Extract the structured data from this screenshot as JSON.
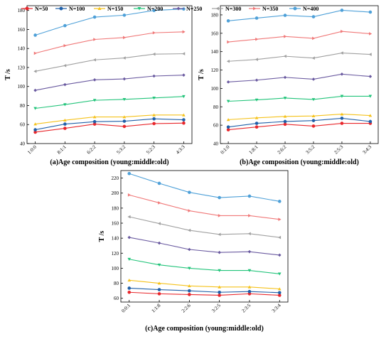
{
  "legend": {
    "position": "top",
    "items": [
      {
        "label": "N=50",
        "color": "#e8262b",
        "marker": "circle"
      },
      {
        "label": "N=100",
        "color": "#1f5fa8",
        "marker": "circle"
      },
      {
        "label": "N=150",
        "color": "#f5c21b",
        "marker": "triangle-up"
      },
      {
        "label": "N=200",
        "color": "#22c47a",
        "marker": "triangle-down"
      },
      {
        "label": "N=250",
        "color": "#6a5aa0",
        "marker": "diamond"
      },
      {
        "label": "N=300",
        "color": "#a0a0a0",
        "marker": "triangle-left"
      },
      {
        "label": "N=350",
        "color": "#f07878",
        "marker": "triangle-right"
      },
      {
        "label": "N=400",
        "color": "#4ea0d8",
        "marker": "circle"
      }
    ]
  },
  "chart_data": [
    {
      "type": "line",
      "panel": "a",
      "caption": "(a)Age composition (young:middle:old)",
      "ylabel": "T /s",
      "xlabel": "",
      "categories": [
        "1:0:0",
        "8:1:1",
        "6:2:2",
        "5:3:2",
        "5:2:3",
        "4:3:3"
      ],
      "ylim": [
        40,
        185
      ],
      "yticks": [
        40,
        60,
        80,
        100,
        120,
        140,
        160,
        180
      ],
      "series": [
        {
          "name": "N=50",
          "values": [
            52,
            56,
            60.5,
            58,
            61,
            61.5
          ]
        },
        {
          "name": "N=100",
          "values": [
            54.5,
            60.5,
            63,
            63.5,
            66,
            65
          ]
        },
        {
          "name": "N=150",
          "values": [
            60.5,
            64.5,
            68,
            68,
            70,
            70
          ]
        },
        {
          "name": "N=200",
          "values": [
            77,
            81,
            85.5,
            86.5,
            88,
            89.5
          ]
        },
        {
          "name": "N=250",
          "values": [
            96,
            102,
            107,
            108,
            111,
            112
          ]
        },
        {
          "name": "N=300",
          "values": [
            116,
            122,
            128,
            130,
            134,
            134.5
          ]
        },
        {
          "name": "N=350",
          "values": [
            135,
            143,
            149.5,
            151.5,
            156.5,
            157.5
          ]
        },
        {
          "name": "N=400",
          "values": [
            154,
            164,
            173,
            175,
            180,
            181.5
          ]
        }
      ]
    },
    {
      "type": "line",
      "panel": "b",
      "caption": "(b)Age composition (young:middle:old)",
      "ylabel": "T /s",
      "xlabel": "",
      "categories": [
        "0:1:0",
        "1:8:1",
        "2:6:2",
        "3:5:2",
        "2:5:3",
        "3:4:3"
      ],
      "ylim": [
        40,
        190
      ],
      "yticks": [
        40,
        60,
        80,
        100,
        120,
        140,
        160,
        180
      ],
      "series": [
        {
          "name": "N=50",
          "values": [
            55,
            58,
            61,
            59,
            62,
            62
          ]
        },
        {
          "name": "N=100",
          "values": [
            58,
            62,
            64,
            65,
            67.5,
            64
          ]
        },
        {
          "name": "N=150",
          "values": [
            66,
            68,
            69.5,
            70,
            72,
            70.5
          ]
        },
        {
          "name": "N=200",
          "values": [
            86,
            87.5,
            89.5,
            88,
            91.5,
            91.5
          ]
        },
        {
          "name": "N=250",
          "values": [
            107,
            109,
            112,
            110,
            115.5,
            113
          ]
        },
        {
          "name": "N=300",
          "values": [
            129.5,
            131.5,
            135,
            133,
            138.5,
            137
          ]
        },
        {
          "name": "N=350",
          "values": [
            150.5,
            153.5,
            156.5,
            154.5,
            162,
            159.5
          ]
        },
        {
          "name": "N=400",
          "values": [
            173.5,
            176.5,
            179.5,
            178,
            185,
            183
          ]
        }
      ]
    },
    {
      "type": "line",
      "panel": "c",
      "caption": "(c)Age composition (young:middle:old)",
      "ylabel": "T /s",
      "xlabel": "",
      "categories": [
        "0:0:1",
        "1:1:8",
        "2:2:6",
        "3:2:5",
        "2:3:5",
        "3:3:4"
      ],
      "ylim": [
        55,
        230
      ],
      "yticks": [
        60,
        80,
        100,
        120,
        140,
        160,
        180,
        200,
        220
      ],
      "series": [
        {
          "name": "N=50",
          "values": [
            68,
            66,
            65,
            64,
            66,
            64
          ]
        },
        {
          "name": "N=100",
          "values": [
            73.5,
            71.5,
            70,
            68,
            69,
            67.5
          ]
        },
        {
          "name": "N=150",
          "values": [
            84,
            80,
            76.5,
            75,
            75,
            72.5
          ]
        },
        {
          "name": "N=200",
          "values": [
            112,
            104.5,
            100,
            97,
            97,
            92.5
          ]
        },
        {
          "name": "N=250",
          "values": [
            141,
            133.5,
            125,
            121,
            122,
            117.5
          ]
        },
        {
          "name": "N=300",
          "values": [
            168.5,
            159.5,
            150.5,
            145,
            146,
            141
          ]
        },
        {
          "name": "N=350",
          "values": [
            197.5,
            187,
            176.5,
            170,
            170,
            165
          ]
        },
        {
          "name": "N=400",
          "values": [
            226,
            213,
            201,
            194,
            196,
            189
          ]
        }
      ]
    }
  ]
}
